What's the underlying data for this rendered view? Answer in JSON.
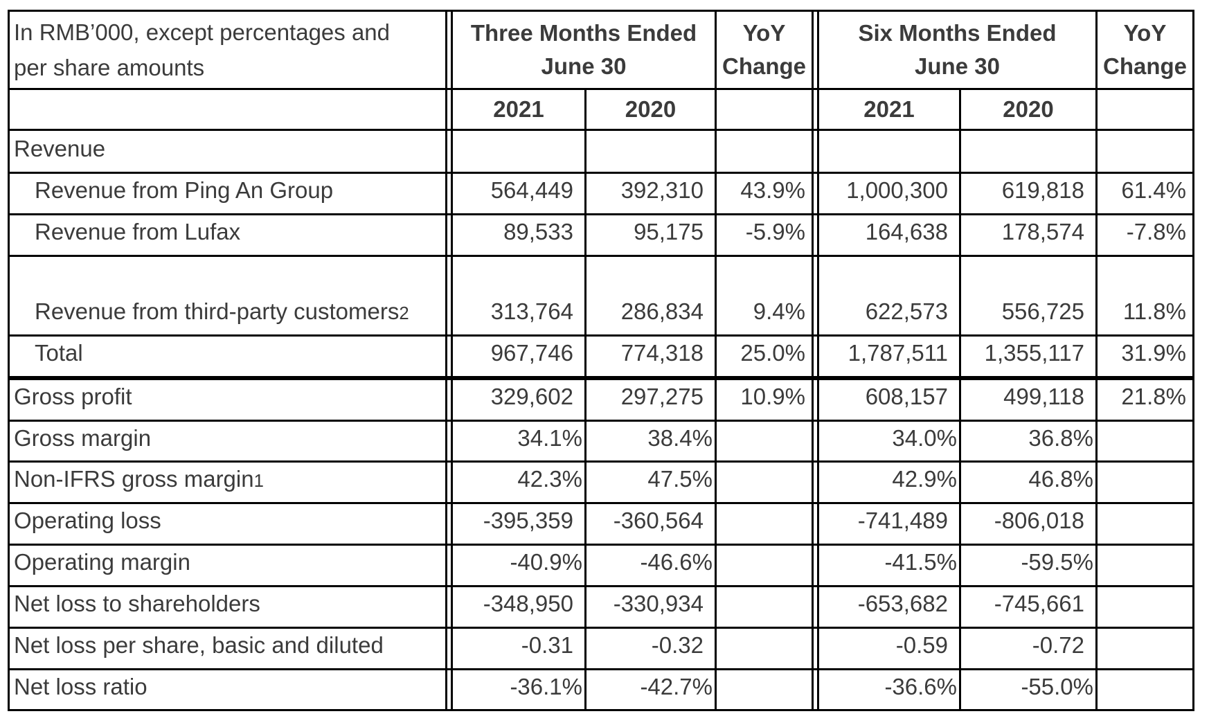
{
  "colors": {
    "border": "#000000",
    "text": "#3b3b3b",
    "background": "#ffffff"
  },
  "table": {
    "header": {
      "corner": "In RMB’000, except percentages and\nper share amounts",
      "group_three_months": "Three Months Ended\nJune 30",
      "group_six_months": "Six Months Ended\nJune 30",
      "yoy_change": "YoY\nChange",
      "years": [
        "2021",
        "2020"
      ]
    },
    "rows": [
      {
        "label": "Revenue",
        "section": true,
        "indent": false,
        "cells": [
          "",
          "",
          "",
          "",
          "",
          ""
        ]
      },
      {
        "label": "Revenue from Ping An Group",
        "indent": true,
        "cells": [
          "564,449",
          "392,310",
          "43.9%",
          "1,000,300",
          "619,818",
          "61.4%"
        ]
      },
      {
        "label": "Revenue from Lufax",
        "indent": true,
        "cells": [
          "89,533",
          "95,175",
          "-5.9%",
          "164,638",
          "178,574",
          "-7.8%"
        ]
      },
      {
        "label": "Revenue from third-party customers",
        "footnote": "2",
        "indent": true,
        "tall": true,
        "cells": [
          "313,764",
          "286,834",
          "9.4%",
          "622,573",
          "556,725",
          "11.8%"
        ]
      },
      {
        "label": "Total",
        "indent": true,
        "thick_bottom": true,
        "cells": [
          "967,746",
          "774,318",
          "25.0%",
          "1,787,511",
          "1,355,117",
          "31.9%"
        ]
      },
      {
        "label": "Gross profit",
        "indent": false,
        "cells": [
          "329,602",
          "297,275",
          "10.9%",
          "608,157",
          "499,118",
          "21.8%"
        ]
      },
      {
        "label": "Gross margin",
        "indent": false,
        "pct": true,
        "cells": [
          "34.1%",
          "38.4%",
          "",
          "34.0%",
          "36.8%",
          ""
        ]
      },
      {
        "label": "Non-IFRS gross margin",
        "footnote": "1",
        "indent": false,
        "pct": true,
        "cells": [
          "42.3%",
          "47.5%",
          "",
          "42.9%",
          "46.8%",
          ""
        ]
      },
      {
        "label": "Operating loss",
        "indent": false,
        "cells": [
          "-395,359",
          "-360,564",
          "",
          "-741,489",
          "-806,018",
          ""
        ]
      },
      {
        "label": "Operating margin",
        "indent": false,
        "pct": true,
        "cells": [
          "-40.9%",
          "-46.6%",
          "",
          "-41.5%",
          "-59.5%",
          ""
        ]
      },
      {
        "label": "Net loss to shareholders",
        "indent": false,
        "cells": [
          "-348,950",
          "-330,934",
          "",
          "-653,682",
          "-745,661",
          ""
        ]
      },
      {
        "label": "Net loss per share, basic and diluted",
        "indent": false,
        "cells": [
          "-0.31",
          "-0.32",
          "",
          "-0.59",
          "-0.72",
          ""
        ]
      },
      {
        "label": "Net loss ratio",
        "indent": false,
        "pct": true,
        "cells": [
          "-36.1%",
          "-42.7%",
          "",
          "-36.6%",
          "-55.0%",
          ""
        ]
      }
    ]
  }
}
